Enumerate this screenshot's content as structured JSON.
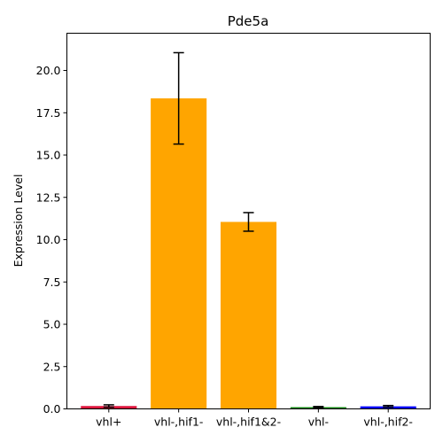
{
  "chart_data": {
    "type": "bar",
    "title": "Pde5a",
    "xlabel": "",
    "ylabel": "Expression Level",
    "categories": [
      "vhl+",
      "vhl-,hif1-",
      "vhl-,hif1&2-",
      "vhl-",
      "vhl-,hif2-"
    ],
    "values": [
      0.17,
      18.35,
      11.05,
      0.1,
      0.15
    ],
    "errors": [
      0.07,
      2.7,
      0.55,
      0.04,
      0.05
    ],
    "colors": [
      "#dc143c",
      "#ffa500",
      "#ffa500",
      "#008000",
      "#0000ff"
    ],
    "ylim": [
      0,
      22.2
    ],
    "yticks": [
      0.0,
      2.5,
      5.0,
      7.5,
      10.0,
      12.5,
      15.0,
      17.5,
      20.0
    ],
    "ytick_labels": [
      "0.0",
      "2.5",
      "5.0",
      "7.5",
      "10.0",
      "12.5",
      "15.0",
      "17.5",
      "20.0"
    ],
    "grid": false,
    "legend": "none"
  }
}
